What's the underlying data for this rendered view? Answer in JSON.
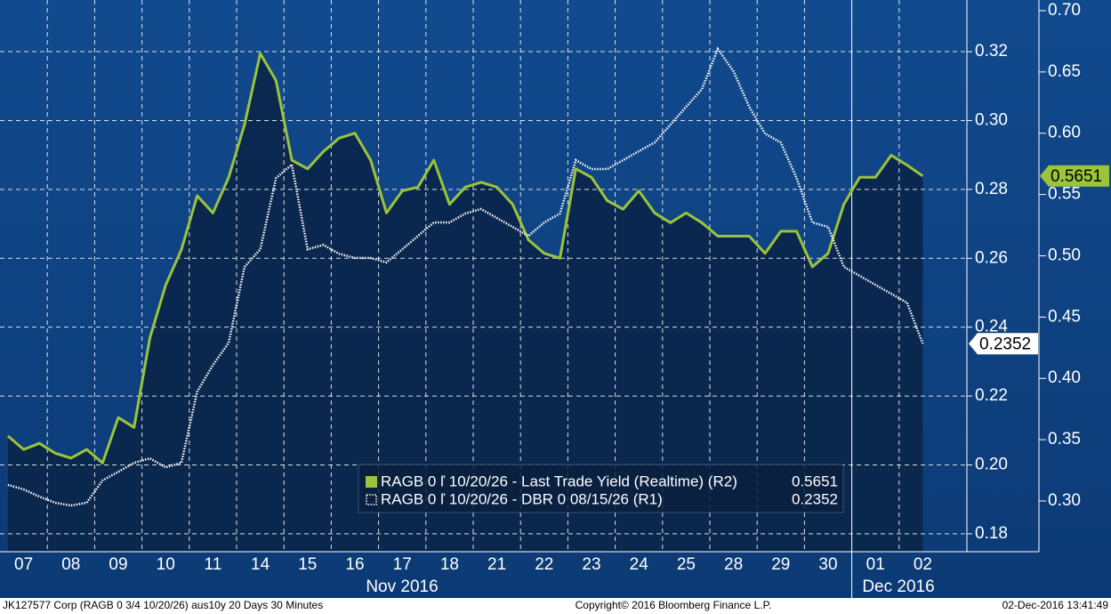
{
  "chart_data": {
    "type": "line",
    "categories": [
      null,
      "07",
      null,
      null,
      "08",
      null,
      null,
      "09",
      null,
      null,
      "10",
      null,
      null,
      "11",
      null,
      null,
      "14",
      null,
      null,
      "15",
      null,
      null,
      "16",
      null,
      null,
      "17",
      null,
      null,
      "18",
      null,
      null,
      "21",
      null,
      null,
      "22",
      null,
      null,
      "23",
      null,
      null,
      "24",
      null,
      null,
      "25",
      null,
      null,
      "28",
      null,
      null,
      "29",
      null,
      null,
      "30",
      null,
      null,
      "01",
      null,
      null,
      "02",
      null
    ],
    "x_groups": [
      "Nov 2016",
      "Dec 2016"
    ],
    "series": [
      {
        "name": "RAGB 0 ľ 10/20/26 - Last Trade Yield (Realtime) (R2)",
        "color": "#9bc33c",
        "axis": "y2",
        "values": [
          0.353,
          0.342,
          0.347,
          0.339,
          0.335,
          0.342,
          0.331,
          0.368,
          0.36,
          0.433,
          0.476,
          0.505,
          0.549,
          0.535,
          0.564,
          0.607,
          0.665,
          0.643,
          0.578,
          0.571,
          0.585,
          0.596,
          0.6,
          0.578,
          0.535,
          0.553,
          0.556,
          0.578,
          0.542,
          0.556,
          0.56,
          0.556,
          0.542,
          0.513,
          0.502,
          0.498,
          0.571,
          0.564,
          0.545,
          0.538,
          0.553,
          0.535,
          0.527,
          0.535,
          0.527,
          0.516,
          0.516,
          0.516,
          0.502,
          0.52,
          0.52,
          0.491,
          0.502,
          0.542,
          0.564,
          0.564,
          0.582,
          0.574,
          0.5651,
          null
        ]
      },
      {
        "name": "RAGB 0 ľ 10/20/26 - DBR 0 08/15/26 (R1)",
        "color": "#ffffff",
        "axis": "y",
        "values": [
          0.1942,
          0.1929,
          0.1908,
          0.189,
          0.1882,
          0.189,
          0.1955,
          0.198,
          0.2006,
          0.2019,
          0.1993,
          0.2006,
          0.2213,
          0.229,
          0.2355,
          0.2575,
          0.2626,
          0.2833,
          0.2872,
          0.2626,
          0.2639,
          0.2613,
          0.2601,
          0.2601,
          0.2588,
          0.2626,
          0.2665,
          0.2704,
          0.2704,
          0.273,
          0.2743,
          0.2717,
          0.2691,
          0.2665,
          0.2704,
          0.273,
          0.2885,
          0.2859,
          0.2859,
          0.2885,
          0.2911,
          0.2936,
          0.2988,
          0.304,
          0.3091,
          0.3208,
          0.3143,
          0.304,
          0.2962,
          0.2936,
          0.2833,
          0.2704,
          0.2691,
          0.2575,
          0.2549,
          0.2523,
          0.2497,
          0.2471,
          0.2352,
          null
        ]
      }
    ],
    "ylim": [
      0.1748,
      0.335
    ],
    "yticks": [
      0.18,
      {
        "value": 0.2,
        "label": "0.20"
      },
      0.22,
      0.24,
      0.26,
      0.28,
      {
        "value": 0.3,
        "label": "0.30"
      },
      0.32
    ],
    "y2lim": [
      0.2586,
      0.7087
    ],
    "y2ticks": [
      {
        "value": 0.3,
        "label": "0.30"
      },
      0.35,
      {
        "value": 0.4,
        "label": "0.40"
      },
      0.45,
      {
        "value": 0.5,
        "label": "0.50"
      },
      0.55,
      {
        "value": 0.6,
        "label": "0.60"
      },
      0.65,
      {
        "value": 0.7,
        "label": "0.70"
      }
    ],
    "grid": true,
    "footer": {
      "left": "JK127577 Corp (RAGB 0 3/4 10/20/26) aus10y 20 Days 30 Minutes",
      "center": "Copyright© 2016 Bloomberg Finance L.P.",
      "right": "02-Dec-2016 13:41:49"
    }
  }
}
